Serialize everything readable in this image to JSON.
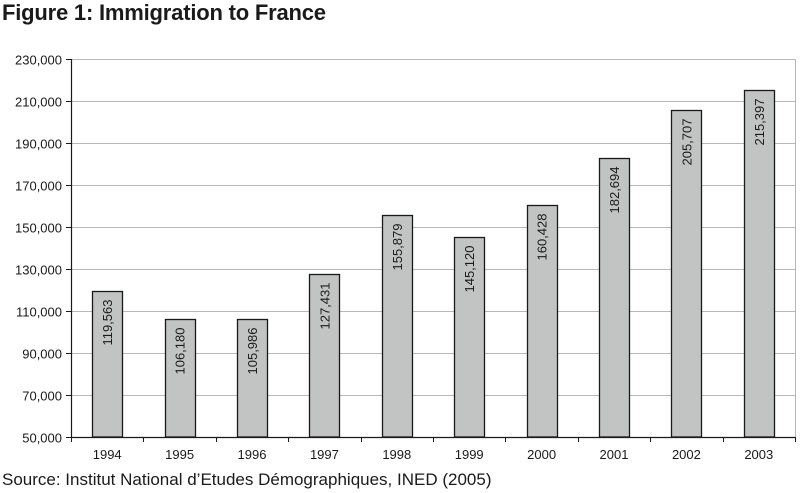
{
  "title": "Figure 1: Immigration to France",
  "source": "Source: Institut National d’Etudes Démographiques, INED (2005)",
  "chart_data": {
    "type": "bar",
    "title": "Figure 1: Immigration to France",
    "xlabel": "",
    "ylabel": "",
    "categories": [
      "1994",
      "1995",
      "1996",
      "1997",
      "1998",
      "1999",
      "2000",
      "2001",
      "2002",
      "2003"
    ],
    "values": [
      119563,
      106180,
      105986,
      127431,
      155879,
      145120,
      160428,
      182694,
      205707,
      215397
    ],
    "data_labels": [
      "119,563",
      "106,180",
      "105,986",
      "127,431",
      "155,879",
      "145,120",
      "160,428",
      "182,694",
      "205,707",
      "215,397"
    ],
    "ylim": [
      50000,
      230000
    ],
    "yticks": [
      50000,
      70000,
      90000,
      110000,
      130000,
      150000,
      170000,
      190000,
      210000,
      230000
    ],
    "ytick_labels": [
      "50,000",
      "70,000",
      "90,000",
      "110,000",
      "130,000",
      "150,000",
      "170,000",
      "190,000",
      "210,000",
      "230,000"
    ],
    "grid": true,
    "legend": "none",
    "bar_color": "#c2c4c3",
    "bar_edge_color": "#1a1a1a",
    "grid_color": "#b8b8b8"
  }
}
